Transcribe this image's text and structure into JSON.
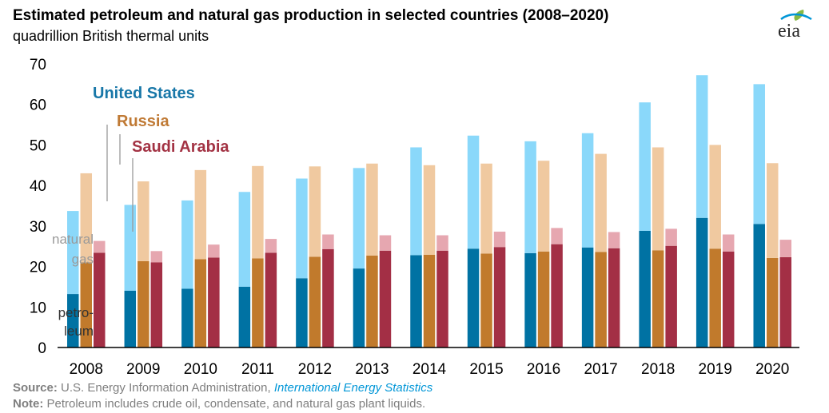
{
  "title": "Estimated petroleum and natural gas production in selected countries (2008–2020)",
  "subtitle": "quadrillion British thermal units",
  "logo_text": "eia",
  "chart_data": {
    "type": "bar",
    "stacked": true,
    "categories": [
      "2008",
      "2009",
      "2010",
      "2011",
      "2012",
      "2013",
      "2014",
      "2015",
      "2016",
      "2017",
      "2018",
      "2019",
      "2020"
    ],
    "ylim": [
      0,
      70
    ],
    "yticks": [
      0,
      10,
      20,
      30,
      40,
      50,
      60,
      70
    ],
    "ylabel": "",
    "xlabel": "",
    "series": [
      {
        "name": "United States",
        "color_label": "#1877a8",
        "petroleum": [
          13.2,
          14.0,
          14.5,
          15.0,
          17.1,
          19.5,
          22.8,
          24.4,
          23.3,
          24.7,
          28.8,
          32.0,
          30.5
        ],
        "natural_gas": [
          20.5,
          21.2,
          21.8,
          23.4,
          24.6,
          24.8,
          26.6,
          27.9,
          27.6,
          28.2,
          31.7,
          35.2,
          34.5
        ],
        "colors": {
          "petroleum": "#0072a3",
          "natural_gas": "#8ad8fa"
        }
      },
      {
        "name": "Russia",
        "color_label": "#c07a35",
        "petroleum": [
          21.0,
          21.3,
          21.8,
          22.0,
          22.4,
          22.7,
          22.9,
          23.2,
          23.7,
          23.6,
          24.0,
          24.4,
          22.1
        ],
        "natural_gas": [
          22.0,
          19.7,
          22.0,
          22.8,
          22.3,
          22.7,
          22.1,
          22.2,
          22.4,
          24.2,
          25.4,
          25.6,
          23.4
        ],
        "colors": {
          "petroleum": "#c17a2c",
          "natural_gas": "#f0c9a0"
        }
      },
      {
        "name": "Saudi Arabia",
        "color_label": "#a33344",
        "petroleum": [
          23.4,
          21.0,
          22.2,
          23.4,
          24.3,
          23.9,
          23.9,
          24.8,
          25.5,
          24.5,
          25.1,
          23.7,
          22.3
        ],
        "natural_gas": [
          2.9,
          2.8,
          3.2,
          3.4,
          3.6,
          3.8,
          3.8,
          3.8,
          4.0,
          4.0,
          4.2,
          4.2,
          4.3
        ],
        "colors": {
          "petroleum": "#a32f45",
          "natural_gas": "#e6a7b0"
        }
      }
    ],
    "annotations": {
      "natural_gas_line1": "natural",
      "natural_gas_line2": "gas",
      "petroleum_line1": "petro-",
      "petroleum_line2": "leum"
    }
  },
  "footer": {
    "source_label": "Source:",
    "source_text": "U.S. Energy Information Administration,",
    "source_link": "International Energy Statistics",
    "note_label": "Note:",
    "note_text": "Petroleum includes crude oil, condensate, and natural gas plant liquids."
  }
}
